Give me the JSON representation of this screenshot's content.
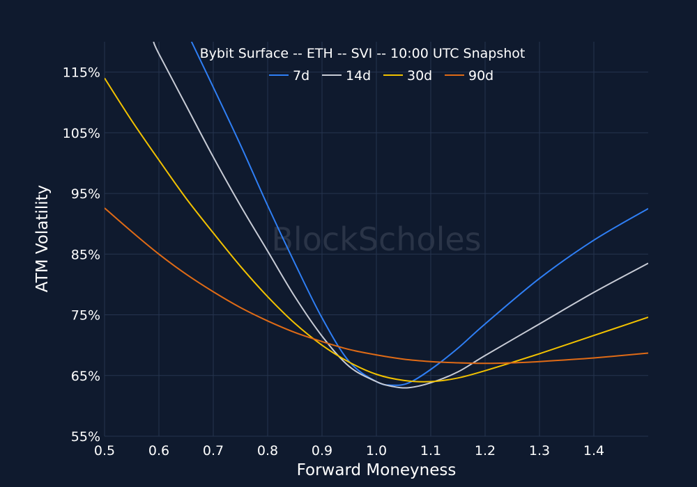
{
  "chart_data": {
    "type": "line",
    "title": "Bybit Surface -- ETH -- SVI -- 10:00 UTC Snapshot",
    "xlabel": "Forward Moneyness",
    "ylabel": "ATM Volatility",
    "xlim": [
      0.5,
      1.5
    ],
    "ylim": [
      55,
      120
    ],
    "xticks": [
      0.5,
      0.6,
      0.7,
      0.8,
      0.9,
      1.0,
      1.1,
      1.2,
      1.3,
      1.4
    ],
    "xtick_labels": [
      "0.5",
      "0.6",
      "0.7",
      "0.8",
      "0.9",
      "1.0",
      "1.1",
      "1.2",
      "1.3",
      "1.4"
    ],
    "yticks": [
      55,
      65,
      75,
      85,
      95,
      105,
      115
    ],
    "ytick_labels": [
      "55%",
      "65%",
      "75%",
      "85%",
      "95%",
      "105%",
      "115%"
    ],
    "grid": true,
    "legend_position": "top-center",
    "watermark": "BlockScholes",
    "colors": {
      "background": "#0f1a2e",
      "grid": "#26344f"
    },
    "series": [
      {
        "name": "7d",
        "color": "#2f7ff5",
        "x": [
          0.66,
          0.7,
          0.75,
          0.8,
          0.85,
          0.9,
          0.95,
          1.0,
          1.03,
          1.06,
          1.1,
          1.15,
          1.2,
          1.3,
          1.4,
          1.5
        ],
        "y": [
          120.0,
          112.5,
          103.0,
          93.0,
          83.5,
          74.5,
          67.3,
          64.0,
          63.4,
          63.8,
          66.0,
          69.5,
          73.5,
          81.0,
          87.3,
          92.5
        ]
      },
      {
        "name": "14d",
        "color": "#c8ccd6",
        "x": [
          0.59,
          0.6,
          0.65,
          0.7,
          0.75,
          0.8,
          0.85,
          0.9,
          0.95,
          1.0,
          1.03,
          1.06,
          1.1,
          1.15,
          1.2,
          1.3,
          1.4,
          1.5
        ],
        "y": [
          120.0,
          118.0,
          109.5,
          101.0,
          93.0,
          85.5,
          78.0,
          71.5,
          66.5,
          64.0,
          63.2,
          63.0,
          63.8,
          65.6,
          68.3,
          73.5,
          78.7,
          83.5
        ]
      },
      {
        "name": "30d",
        "color": "#f2c200",
        "x": [
          0.5,
          0.55,
          0.6,
          0.65,
          0.7,
          0.75,
          0.8,
          0.85,
          0.9,
          0.95,
          1.0,
          1.05,
          1.1,
          1.15,
          1.2,
          1.3,
          1.4,
          1.5
        ],
        "y": [
          114.0,
          107.0,
          100.5,
          94.2,
          88.5,
          83.0,
          78.0,
          73.6,
          70.0,
          67.2,
          65.2,
          64.2,
          64.0,
          64.6,
          65.8,
          68.6,
          71.6,
          74.6
        ]
      },
      {
        "name": "90d",
        "color": "#e06b16",
        "x": [
          0.5,
          0.55,
          0.6,
          0.65,
          0.7,
          0.75,
          0.8,
          0.85,
          0.9,
          0.95,
          1.0,
          1.05,
          1.1,
          1.15,
          1.2,
          1.25,
          1.3,
          1.4,
          1.5
        ],
        "y": [
          92.6,
          88.7,
          85.0,
          81.7,
          78.8,
          76.2,
          74.0,
          72.1,
          70.6,
          69.3,
          68.4,
          67.7,
          67.3,
          67.1,
          67.0,
          67.1,
          67.3,
          67.9,
          68.7
        ]
      }
    ]
  }
}
